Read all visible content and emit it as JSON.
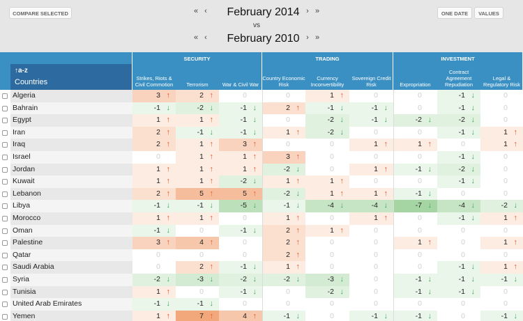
{
  "toolbar": {
    "compare_label": "COMPARE SELECTED",
    "one_date_label": "ONE DATE",
    "values_label": "VALUES"
  },
  "nav": {
    "first": "«",
    "prev": "‹",
    "next": "›",
    "last": "»",
    "period1": "February 2014",
    "vs": "vs",
    "period2": "February 2010"
  },
  "table": {
    "sort_label": "↑a-z",
    "countries_header": "Countries",
    "groups": [
      {
        "title": "SECURITY",
        "columns": [
          "Strikes, Riots & Civil Commotion",
          "Terrorism",
          "War & Civil War"
        ]
      },
      {
        "title": "TRADING",
        "columns": [
          "Country Economic Risk",
          "Currency Inconvertibility",
          "Sovereign Credit Risk"
        ]
      },
      {
        "title": "INVESTMENT",
        "columns": [
          "Expropriation",
          "Contract Agreement Repudiation",
          "Legal & Regulatory Risk"
        ]
      }
    ],
    "rows": [
      {
        "country": "Algeria",
        "values": [
          3,
          2,
          0,
          0,
          1,
          0,
          0,
          -1,
          0
        ]
      },
      {
        "country": "Bahrain",
        "values": [
          -1,
          -2,
          -1,
          2,
          -1,
          -1,
          0,
          -1,
          0
        ]
      },
      {
        "country": "Egypt",
        "values": [
          1,
          1,
          -1,
          0,
          -2,
          -1,
          -2,
          -2,
          0
        ]
      },
      {
        "country": "Iran",
        "values": [
          2,
          -1,
          -1,
          1,
          -2,
          0,
          0,
          -1,
          1
        ]
      },
      {
        "country": "Iraq",
        "values": [
          2,
          1,
          3,
          0,
          0,
          1,
          1,
          0,
          1
        ]
      },
      {
        "country": "Israel",
        "values": [
          0,
          1,
          1,
          3,
          0,
          0,
          0,
          -1,
          0
        ]
      },
      {
        "country": "Jordan",
        "values": [
          1,
          1,
          1,
          -2,
          0,
          1,
          -1,
          -2,
          0
        ]
      },
      {
        "country": "Kuwait",
        "values": [
          1,
          1,
          -2,
          1,
          1,
          0,
          0,
          -1,
          0
        ]
      },
      {
        "country": "Lebanon",
        "values": [
          2,
          5,
          5,
          -2,
          1,
          1,
          -1,
          0,
          0
        ]
      },
      {
        "country": "Libya",
        "values": [
          -1,
          -1,
          -5,
          -1,
          -4,
          -4,
          -7,
          -4,
          -2
        ]
      },
      {
        "country": "Morocco",
        "values": [
          1,
          1,
          0,
          1,
          0,
          1,
          0,
          -1,
          1
        ]
      },
      {
        "country": "Oman",
        "values": [
          -1,
          0,
          -1,
          2,
          1,
          0,
          0,
          0,
          0
        ]
      },
      {
        "country": "Palestine",
        "values": [
          3,
          4,
          0,
          2,
          0,
          0,
          1,
          0,
          1
        ]
      },
      {
        "country": "Qatar",
        "values": [
          0,
          0,
          0,
          2,
          0,
          0,
          0,
          0,
          0
        ]
      },
      {
        "country": "Saudi Arabia",
        "values": [
          0,
          2,
          -1,
          1,
          0,
          0,
          0,
          -1,
          1
        ]
      },
      {
        "country": "Syria",
        "values": [
          -2,
          -3,
          -2,
          -2,
          -3,
          0,
          -1,
          -1,
          -1
        ]
      },
      {
        "country": "Tunisia",
        "values": [
          1,
          0,
          -1,
          0,
          -2,
          0,
          -1,
          -1,
          0
        ]
      },
      {
        "country": "United Arab Emirates",
        "values": [
          -1,
          -1,
          0,
          0,
          0,
          0,
          0,
          0,
          0
        ]
      },
      {
        "country": "Yemen",
        "values": [
          1,
          7,
          4,
          -1,
          0,
          -1,
          -1,
          0,
          -1
        ]
      }
    ]
  },
  "colors": {
    "header_blue": "#3b90c3",
    "sort_blue": "#2d6a9f",
    "increase_arrow": "#e8562a",
    "decrease_arrow": "#3aa856",
    "increase_glyph": "↑",
    "decrease_glyph": "↓"
  }
}
